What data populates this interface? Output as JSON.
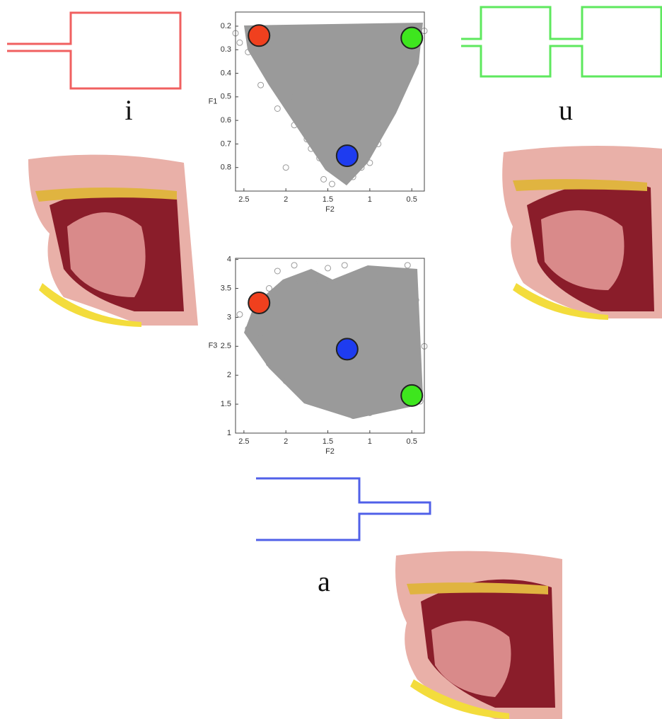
{
  "labels": [
    "i",
    "u",
    "a"
  ],
  "chart_data": [
    {
      "type": "scatter",
      "xlabel": "F2",
      "ylabel": "F1",
      "xlim": [
        2.6,
        0.35
      ],
      "ylim": [
        0.9,
        0.14
      ],
      "xticks": [
        2.5,
        2,
        1.5,
        1,
        0.5
      ],
      "yticks": [
        0.2,
        0.3,
        0.4,
        0.5,
        0.6,
        0.7,
        0.8
      ],
      "points": {
        "color": "#9a9a9a",
        "x": [
          2.55,
          2.45,
          2.2,
          2.1,
          1.95,
          1.9,
          1.75,
          1.7,
          1.6,
          1.55,
          1.45,
          1.1,
          1.0,
          0.9,
          0.8,
          0.7,
          0.6,
          0.45,
          2.3,
          2.0,
          1.4,
          1.2,
          2.6,
          0.35
        ],
        "y": [
          0.27,
          0.31,
          0.4,
          0.55,
          0.5,
          0.62,
          0.68,
          0.72,
          0.76,
          0.85,
          0.87,
          0.8,
          0.78,
          0.7,
          0.6,
          0.5,
          0.42,
          0.3,
          0.45,
          0.8,
          0.75,
          0.84,
          0.23,
          0.22
        ]
      },
      "markers": {
        "x": [
          2.32,
          0.5,
          1.27
        ],
        "y": [
          0.24,
          0.25,
          0.75
        ],
        "colors": [
          "#f0401e",
          "#3ee61e",
          "#1e3cf0"
        ]
      }
    },
    {
      "type": "scatter",
      "xlabel": "F2",
      "ylabel": "F3",
      "xlim": [
        2.6,
        0.35
      ],
      "ylim": [
        1,
        4.02
      ],
      "xticks": [
        2.5,
        2,
        1.5,
        1,
        0.5
      ],
      "yticks": [
        1,
        1.5,
        2,
        2.5,
        3,
        3.5,
        4
      ],
      "points": {
        "color": "#9a9a9a",
        "x": [
          2.55,
          2.45,
          2.3,
          2.2,
          2.1,
          1.9,
          1.5,
          1.3,
          0.9,
          0.6,
          0.45,
          0.35,
          0.4,
          0.7,
          1.0,
          1.2,
          1.5,
          1.8,
          2.0,
          2.2,
          1.6,
          0.55
        ],
        "y": [
          3.05,
          2.8,
          2.7,
          3.5,
          3.8,
          3.9,
          3.85,
          3.9,
          3.8,
          3.7,
          3.3,
          2.5,
          1.55,
          1.45,
          1.35,
          1.3,
          1.45,
          1.7,
          1.9,
          2.2,
          3.6,
          3.9
        ]
      },
      "markers": {
        "x": [
          2.32,
          1.27,
          0.5
        ],
        "y": [
          3.25,
          2.45,
          1.65
        ],
        "colors": [
          "#f0401e",
          "#1e3cf0",
          "#3ee61e"
        ]
      }
    }
  ]
}
